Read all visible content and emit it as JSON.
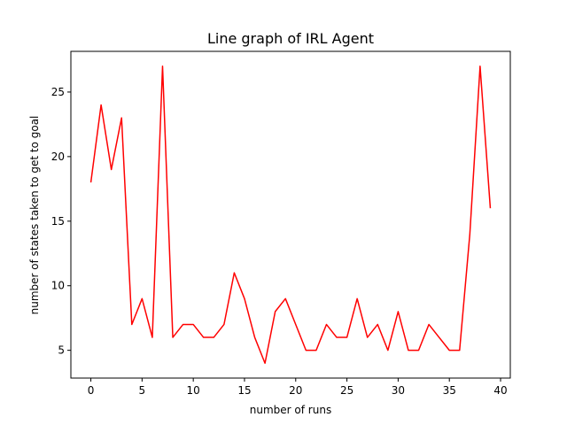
{
  "chart_data": {
    "type": "line",
    "title": "Line graph of IRL Agent",
    "xlabel": "number of runs",
    "ylabel": "number of states taken to get to goal",
    "xlim": [
      -1.95,
      40.95
    ],
    "ylim": [
      2.85,
      28.15
    ],
    "xticks": [
      0,
      5,
      10,
      15,
      20,
      25,
      30,
      35,
      40
    ],
    "yticks": [
      5,
      10,
      15,
      20,
      25
    ],
    "grid": false,
    "series": [
      {
        "color": "#ff0000",
        "x": [
          0,
          1,
          2,
          3,
          4,
          5,
          6,
          7,
          8,
          9,
          10,
          11,
          12,
          13,
          14,
          15,
          16,
          17,
          18,
          19,
          20,
          21,
          22,
          23,
          24,
          25,
          26,
          27,
          28,
          29,
          30,
          31,
          32,
          33,
          34,
          35,
          36,
          37,
          38,
          39
        ],
        "y": [
          18,
          24,
          19,
          23,
          7,
          9,
          6,
          27,
          6,
          7,
          7,
          6,
          6,
          7,
          11,
          9,
          6,
          4,
          8,
          9,
          7,
          5,
          5,
          7,
          6,
          6,
          9,
          6,
          7,
          5,
          8,
          5,
          5,
          7,
          6,
          5,
          5,
          14,
          27,
          16
        ]
      }
    ]
  }
}
